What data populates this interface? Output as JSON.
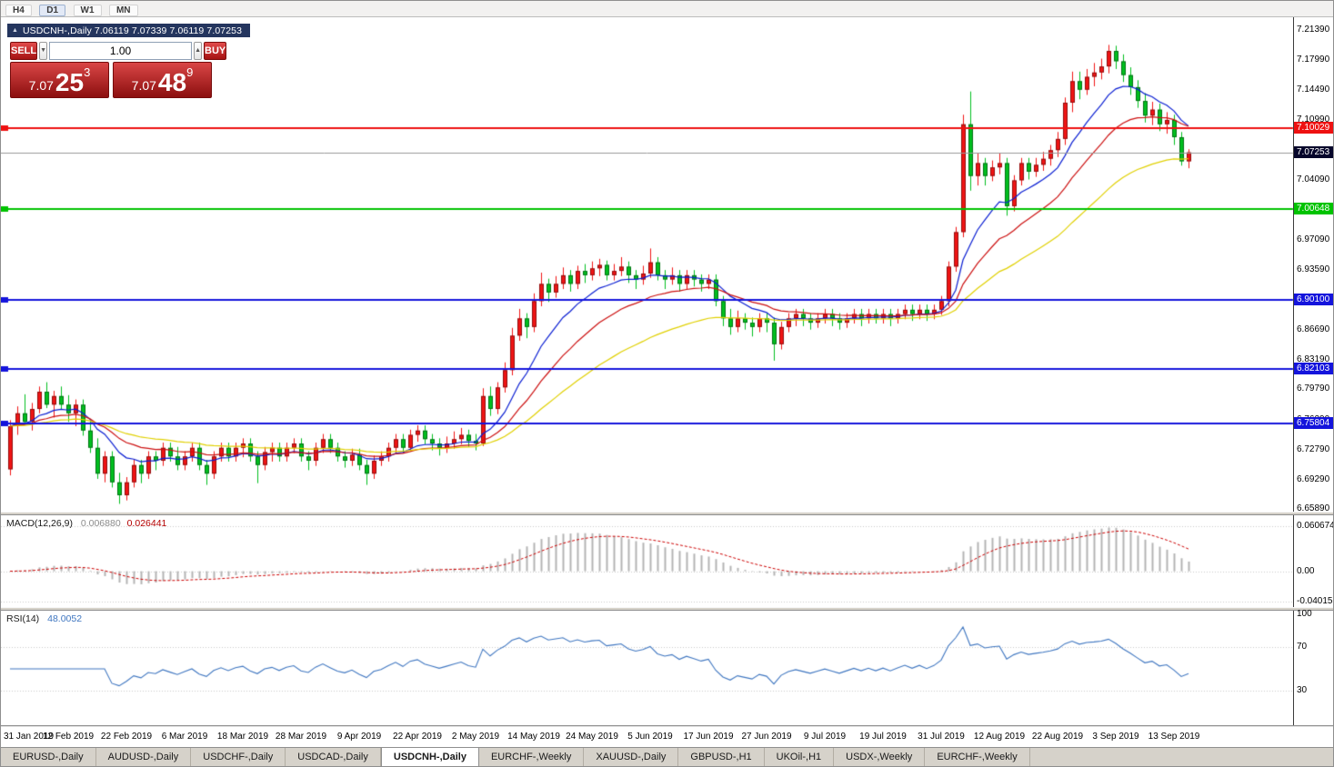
{
  "toolbar": {
    "timeframes": [
      "H4",
      "D1",
      "W1",
      "MN"
    ],
    "active": "D1"
  },
  "chart": {
    "collapse_icon": "▲",
    "title": "USDCNH-,Daily  7.06119 7.07339 7.06119 7.07253",
    "symbol": "USDCNH-",
    "period": "Daily",
    "ohlc": {
      "open": "7.06119",
      "high": "7.07339",
      "low": "7.06119",
      "close": "7.07253"
    }
  },
  "one_click": {
    "sell_label": "SELL",
    "buy_label": "BUY",
    "volume": "1.00",
    "down_glyph": "▼",
    "up_glyph": "▲",
    "sell_price": {
      "base": "7.07",
      "pips": "25",
      "point": "3"
    },
    "buy_price": {
      "base": "7.07",
      "pips": "48",
      "point": "9"
    }
  },
  "price_axis": {
    "top_value": 7.229,
    "bottom_value": 6.656,
    "ticks": [
      {
        "v": 7.2139,
        "label": "7.21390"
      },
      {
        "v": 7.1799,
        "label": "7.17990"
      },
      {
        "v": 7.1449,
        "label": "7.14490"
      },
      {
        "v": 7.1099,
        "label": "7.10990"
      },
      {
        "v": 7.0409,
        "label": "7.04090"
      },
      {
        "v": 6.9709,
        "label": "6.97090"
      },
      {
        "v": 6.9359,
        "label": "6.93590"
      },
      {
        "v": 6.8669,
        "label": "6.86690"
      },
      {
        "v": 6.8319,
        "label": "6.83190"
      },
      {
        "v": 6.7979,
        "label": "6.79790"
      },
      {
        "v": 6.7629,
        "label": "6.76290"
      },
      {
        "v": 6.7279,
        "label": "6.72790"
      },
      {
        "v": 6.6929,
        "label": "6.69290"
      },
      {
        "v": 6.6589,
        "label": "6.65890"
      }
    ]
  },
  "levels": [
    {
      "value": 7.10029,
      "label": "7.10029",
      "color": "#ee1111",
      "thickness": 2
    },
    {
      "value": 7.00648,
      "label": "7.00648",
      "color": "#00c300",
      "thickness": 2
    },
    {
      "value": 6.901,
      "label": "6.90100",
      "color": "#1414dc",
      "thickness": 2
    },
    {
      "value": 6.82103,
      "label": "6.82103",
      "color": "#1414dc",
      "thickness": 2
    },
    {
      "value": 6.75804,
      "label": "6.75804",
      "color": "#1414dc",
      "thickness": 2
    }
  ],
  "current_price": {
    "value": 7.07253,
    "label": "7.07253",
    "bg": "#06062b",
    "line_color": "#9a9a9a"
  },
  "macd": {
    "label": "MACD(12,26,9)",
    "value_main": "0.006880",
    "value_signal": "0.026441",
    "fast": 12,
    "slow": 26,
    "signal_period": 9,
    "hist_color": "#b4b4b4",
    "signal_color": "#cc0000",
    "range": {
      "min": -0.048,
      "max": 0.075
    },
    "axis": [
      {
        "v": 0.060674,
        "label": "0.060674"
      },
      {
        "v": 0,
        "label": "0.00"
      },
      {
        "v": -0.040152,
        "label": "-0.040152"
      }
    ]
  },
  "rsi": {
    "label": "RSI(14)",
    "value": "48.0052",
    "period": 14,
    "color": "#3f76c0",
    "levels": [
      70,
      30
    ],
    "axis": [
      {
        "v": 100,
        "label": "100"
      },
      {
        "v": 70,
        "label": "70"
      },
      {
        "v": 30,
        "label": "30"
      }
    ]
  },
  "tabs": {
    "active_index": 4,
    "items": [
      "EURUSD-,Daily",
      "AUDUSD-,Daily",
      "USDCHF-,Daily",
      "USDCAD-,Daily",
      "USDCNH-,Daily",
      "EURCHF-,Weekly",
      "XAUUSD-,Daily",
      "GBPUSD-,H1",
      "UKOil-,H1",
      "USDX-,Weekly",
      "EURCHF-,Weekly"
    ]
  },
  "chart_data": {
    "type": "candlestick",
    "symbol": "USDCNH",
    "timeframe": "Daily",
    "bull_color": "#f01414",
    "bear_color": "#00bf1f",
    "ylim": [
      6.656,
      7.229
    ],
    "moving_averages": [
      {
        "period": 10,
        "color": "#0a1ed2"
      },
      {
        "period": 20,
        "color": "#cc1010"
      },
      {
        "period": 40,
        "color": "#e0d000"
      }
    ],
    "x_labels": [
      {
        "i": 0,
        "label": "31 Jan 2019"
      },
      {
        "i": 8,
        "label": "12 Feb 2019"
      },
      {
        "i": 16,
        "label": "22 Feb 2019"
      },
      {
        "i": 24,
        "label": "6 Mar 2019"
      },
      {
        "i": 32,
        "label": "18 Mar 2019"
      },
      {
        "i": 40,
        "label": "28 Mar 2019"
      },
      {
        "i": 48,
        "label": "9 Apr 2019"
      },
      {
        "i": 56,
        "label": "22 Apr 2019"
      },
      {
        "i": 64,
        "label": "2 May 2019"
      },
      {
        "i": 72,
        "label": "14 May 2019"
      },
      {
        "i": 80,
        "label": "24 May 2019"
      },
      {
        "i": 88,
        "label": "5 Jun 2019"
      },
      {
        "i": 96,
        "label": "17 Jun 2019"
      },
      {
        "i": 104,
        "label": "27 Jun 2019"
      },
      {
        "i": 112,
        "label": "9 Jul 2019"
      },
      {
        "i": 120,
        "label": "19 Jul 2019"
      },
      {
        "i": 128,
        "label": "31 Jul 2019"
      },
      {
        "i": 136,
        "label": "12 Aug 2019"
      },
      {
        "i": 144,
        "label": "22 Aug 2019"
      },
      {
        "i": 152,
        "label": "3 Sep 2019"
      },
      {
        "i": 160,
        "label": "13 Sep 2019"
      }
    ],
    "candles": [
      [
        6.705,
        6.762,
        6.698,
        6.755
      ],
      [
        6.755,
        6.778,
        6.745,
        6.77
      ],
      [
        6.77,
        6.792,
        6.756,
        6.76
      ],
      [
        6.76,
        6.782,
        6.75,
        6.775
      ],
      [
        6.775,
        6.801,
        6.77,
        6.795
      ],
      [
        6.795,
        6.806,
        6.776,
        6.78
      ],
      [
        6.78,
        6.796,
        6.765,
        6.79
      ],
      [
        6.79,
        6.801,
        6.774,
        6.78
      ],
      [
        6.78,
        6.791,
        6.76,
        6.77
      ],
      [
        6.77,
        6.786,
        6.755,
        6.78
      ],
      [
        6.78,
        6.786,
        6.744,
        6.75
      ],
      [
        6.75,
        6.761,
        6.724,
        6.73
      ],
      [
        6.73,
        6.741,
        6.694,
        6.7
      ],
      [
        6.7,
        6.726,
        6.69,
        6.72
      ],
      [
        6.72,
        6.726,
        6.684,
        6.69
      ],
      [
        6.69,
        6.701,
        6.665,
        6.675
      ],
      [
        6.675,
        6.696,
        6.669,
        6.69
      ],
      [
        6.69,
        6.716,
        6.684,
        6.71
      ],
      [
        6.71,
        6.716,
        6.689,
        6.7
      ],
      [
        6.7,
        6.726,
        6.694,
        6.72
      ],
      [
        6.72,
        6.726,
        6.704,
        6.715
      ],
      [
        6.715,
        6.736,
        6.709,
        6.73
      ],
      [
        6.73,
        6.736,
        6.714,
        6.72
      ],
      [
        6.72,
        6.731,
        6.704,
        6.71
      ],
      [
        6.71,
        6.726,
        6.704,
        6.72
      ],
      [
        6.72,
        6.736,
        6.714,
        6.73
      ],
      [
        6.73,
        6.736,
        6.704,
        6.71
      ],
      [
        6.71,
        6.716,
        6.687,
        6.7
      ],
      [
        6.7,
        6.726,
        6.694,
        6.72
      ],
      [
        6.72,
        6.736,
        6.714,
        6.73
      ],
      [
        6.73,
        6.736,
        6.714,
        6.72
      ],
      [
        6.72,
        6.736,
        6.714,
        6.73
      ],
      [
        6.73,
        6.741,
        6.719,
        6.735
      ],
      [
        6.735,
        6.741,
        6.714,
        6.72
      ],
      [
        6.72,
        6.726,
        6.689,
        6.71
      ],
      [
        6.71,
        6.731,
        6.704,
        6.725
      ],
      [
        6.725,
        6.736,
        6.714,
        6.73
      ],
      [
        6.73,
        6.736,
        6.714,
        6.72
      ],
      [
        6.72,
        6.736,
        6.714,
        6.73
      ],
      [
        6.73,
        6.741,
        6.724,
        6.735
      ],
      [
        6.735,
        6.741,
        6.714,
        6.72
      ],
      [
        6.72,
        6.726,
        6.704,
        6.715
      ],
      [
        6.715,
        6.736,
        6.709,
        6.73
      ],
      [
        6.73,
        6.746,
        6.724,
        6.74
      ],
      [
        6.74,
        6.746,
        6.724,
        6.73
      ],
      [
        6.73,
        6.736,
        6.714,
        6.72
      ],
      [
        6.72,
        6.726,
        6.707,
        6.715
      ],
      [
        6.715,
        6.729,
        6.709,
        6.722
      ],
      [
        6.722,
        6.729,
        6.704,
        6.71
      ],
      [
        6.71,
        6.716,
        6.687,
        6.7
      ],
      [
        6.7,
        6.721,
        6.694,
        6.715
      ],
      [
        6.715,
        6.726,
        6.709,
        6.72
      ],
      [
        6.72,
        6.736,
        6.714,
        6.73
      ],
      [
        6.73,
        6.746,
        6.724,
        6.74
      ],
      [
        6.74,
        6.746,
        6.724,
        6.73
      ],
      [
        6.73,
        6.751,
        6.727,
        6.745
      ],
      [
        6.745,
        6.756,
        6.737,
        6.75
      ],
      [
        6.75,
        6.756,
        6.734,
        6.74
      ],
      [
        6.74,
        6.746,
        6.727,
        6.735
      ],
      [
        6.735,
        6.741,
        6.721,
        6.73
      ],
      [
        6.73,
        6.743,
        6.724,
        6.735
      ],
      [
        6.735,
        6.749,
        6.729,
        6.74
      ],
      [
        6.74,
        6.753,
        6.734,
        6.745
      ],
      [
        6.745,
        6.751,
        6.731,
        6.738
      ],
      [
        6.738,
        6.746,
        6.727,
        6.735
      ],
      [
        6.735,
        6.799,
        6.732,
        6.79
      ],
      [
        6.79,
        6.801,
        6.767,
        6.775
      ],
      [
        6.775,
        6.806,
        6.769,
        6.8
      ],
      [
        6.8,
        6.829,
        6.794,
        6.82
      ],
      [
        6.82,
        6.869,
        6.814,
        6.86
      ],
      [
        6.86,
        6.891,
        6.854,
        6.88
      ],
      [
        6.88,
        6.886,
        6.857,
        6.87
      ],
      [
        6.87,
        6.909,
        6.864,
        6.9
      ],
      [
        6.9,
        6.933,
        6.894,
        6.92
      ],
      [
        6.92,
        6.926,
        6.899,
        6.91
      ],
      [
        6.91,
        6.929,
        6.904,
        6.92
      ],
      [
        6.92,
        6.939,
        6.914,
        6.93
      ],
      [
        6.93,
        6.936,
        6.911,
        6.92
      ],
      [
        6.92,
        6.941,
        6.914,
        6.935
      ],
      [
        6.935,
        6.943,
        6.921,
        6.93
      ],
      [
        6.93,
        6.946,
        6.924,
        6.938
      ],
      [
        6.938,
        6.949,
        6.929,
        6.942
      ],
      [
        6.942,
        6.947,
        6.924,
        6.93
      ],
      [
        6.93,
        6.943,
        6.924,
        6.935
      ],
      [
        6.935,
        6.951,
        6.929,
        6.94
      ],
      [
        6.94,
        6.946,
        6.921,
        6.93
      ],
      [
        6.93,
        6.936,
        6.914,
        6.925
      ],
      [
        6.925,
        6.941,
        6.919,
        6.932
      ],
      [
        6.932,
        6.961,
        6.927,
        6.945
      ],
      [
        6.945,
        6.951,
        6.924,
        6.93
      ],
      [
        6.93,
        6.936,
        6.914,
        6.925
      ],
      [
        6.925,
        6.939,
        6.919,
        6.93
      ],
      [
        6.93,
        6.936,
        6.911,
        6.92
      ],
      [
        6.92,
        6.936,
        6.914,
        6.93
      ],
      [
        6.93,
        6.936,
        6.917,
        6.925
      ],
      [
        6.925,
        6.931,
        6.911,
        6.92
      ],
      [
        6.92,
        6.931,
        6.914,
        6.925
      ],
      [
        6.925,
        6.931,
        6.894,
        6.9
      ],
      [
        6.9,
        6.906,
        6.871,
        6.88
      ],
      [
        6.88,
        6.891,
        6.861,
        6.87
      ],
      [
        6.87,
        6.889,
        6.864,
        6.88
      ],
      [
        6.88,
        6.886,
        6.867,
        6.875
      ],
      [
        6.875,
        6.881,
        6.859,
        6.87
      ],
      [
        6.87,
        6.886,
        6.864,
        6.88
      ],
      [
        6.88,
        6.886,
        6.864,
        6.875
      ],
      [
        6.875,
        6.881,
        6.831,
        6.85
      ],
      [
        6.85,
        6.876,
        6.844,
        6.87
      ],
      [
        6.87,
        6.886,
        6.864,
        6.88
      ],
      [
        6.88,
        6.891,
        6.871,
        6.885
      ],
      [
        6.885,
        6.891,
        6.871,
        6.88
      ],
      [
        6.88,
        6.886,
        6.867,
        6.875
      ],
      [
        6.875,
        6.886,
        6.869,
        6.88
      ],
      [
        6.88,
        6.891,
        6.874,
        6.885
      ],
      [
        6.885,
        6.891,
        6.871,
        6.88
      ],
      [
        6.88,
        6.886,
        6.867,
        6.875
      ],
      [
        6.875,
        6.886,
        6.869,
        6.88
      ],
      [
        6.88,
        6.891,
        6.874,
        6.885
      ],
      [
        6.885,
        6.891,
        6.871,
        6.88
      ],
      [
        6.88,
        6.891,
        6.874,
        6.885
      ],
      [
        6.885,
        6.891,
        6.874,
        6.88
      ],
      [
        6.88,
        6.891,
        6.874,
        6.885
      ],
      [
        6.885,
        6.891,
        6.871,
        6.88
      ],
      [
        6.88,
        6.891,
        6.874,
        6.885
      ],
      [
        6.885,
        6.896,
        6.879,
        6.89
      ],
      [
        6.89,
        6.896,
        6.877,
        6.885
      ],
      [
        6.885,
        6.896,
        6.879,
        6.89
      ],
      [
        6.89,
        6.896,
        6.877,
        6.885
      ],
      [
        6.885,
        6.896,
        6.879,
        6.89
      ],
      [
        6.89,
        6.906,
        6.884,
        6.9
      ],
      [
        6.9,
        6.946,
        6.894,
        6.94
      ],
      [
        6.94,
        6.986,
        6.934,
        6.98
      ],
      [
        6.98,
        7.116,
        6.974,
        7.105
      ],
      [
        7.105,
        7.143,
        7.028,
        7.045
      ],
      [
        7.045,
        7.071,
        7.034,
        7.06
      ],
      [
        7.06,
        7.066,
        7.034,
        7.045
      ],
      [
        7.045,
        7.063,
        7.039,
        7.055
      ],
      [
        7.055,
        7.071,
        7.047,
        7.06
      ],
      [
        7.06,
        7.066,
        6.999,
        7.01
      ],
      [
        7.01,
        7.046,
        7.004,
        7.04
      ],
      [
        7.04,
        7.066,
        7.034,
        7.06
      ],
      [
        7.06,
        7.066,
        7.041,
        7.05
      ],
      [
        7.05,
        7.066,
        7.044,
        7.058
      ],
      [
        7.058,
        7.073,
        7.051,
        7.065
      ],
      [
        7.065,
        7.081,
        7.057,
        7.075
      ],
      [
        7.075,
        7.096,
        7.067,
        7.088
      ],
      [
        7.088,
        7.136,
        7.081,
        7.13
      ],
      [
        7.13,
        7.166,
        7.119,
        7.155
      ],
      [
        7.155,
        7.166,
        7.134,
        7.145
      ],
      [
        7.145,
        7.169,
        7.139,
        7.16
      ],
      [
        7.16,
        7.176,
        7.149,
        7.165
      ],
      [
        7.165,
        7.181,
        7.157,
        7.172
      ],
      [
        7.172,
        7.197,
        7.164,
        7.19
      ],
      [
        7.19,
        7.196,
        7.169,
        7.178
      ],
      [
        7.178,
        7.186,
        7.154,
        7.162
      ],
      [
        7.162,
        7.171,
        7.139,
        7.148
      ],
      [
        7.148,
        7.156,
        7.124,
        7.132
      ],
      [
        7.132,
        7.141,
        7.107,
        7.115
      ],
      [
        7.115,
        7.131,
        7.104,
        7.122
      ],
      [
        7.122,
        7.129,
        7.097,
        7.105
      ],
      [
        7.105,
        7.119,
        7.094,
        7.11
      ],
      [
        7.11,
        7.116,
        7.081,
        7.09
      ],
      [
        7.09,
        7.096,
        7.057,
        7.062
      ],
      [
        7.062,
        7.076,
        7.054,
        7.0725
      ]
    ]
  }
}
